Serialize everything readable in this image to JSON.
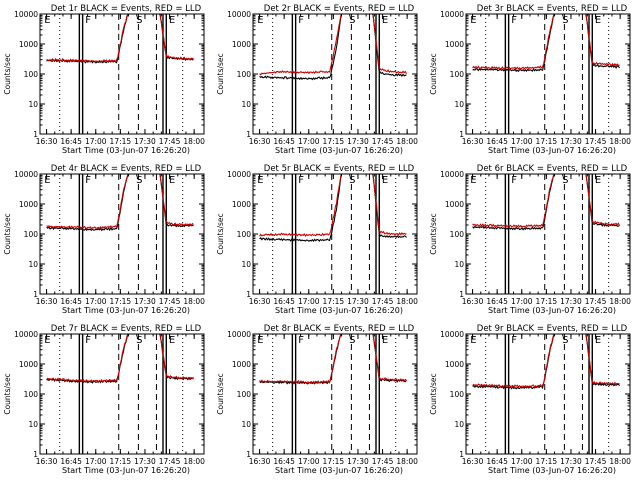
{
  "chart_data": [
    {
      "type": "line",
      "title": "Det 1r BLACK = Events, RED = LLD",
      "xlabel": "Start Time (03-Jun-07 16:26:20)",
      "ylabel": "Counts/sec",
      "x_ticks": [
        "16:30",
        "16:45",
        "17:00",
        "17:15",
        "17:30",
        "17:45",
        "18:00"
      ],
      "y_ticks": [
        "1",
        "10",
        "100",
        "1000",
        "10000"
      ],
      "yscale": "log",
      "ylim": [
        1,
        10000
      ],
      "markers": [
        "E",
        "F",
        "S",
        "E"
      ],
      "series": [
        {
          "name": "Events",
          "color": "#000000",
          "x": [
            "16:30",
            "16:45",
            "17:00",
            "17:13",
            "17:17",
            "17:20",
            "17:39",
            "17:43",
            "17:50",
            "18:00"
          ],
          "y": [
            280,
            270,
            250,
            260,
            3000,
            12000,
            12000,
            350,
            320,
            300
          ]
        },
        {
          "name": "LLD",
          "color": "#cc0000",
          "x": [
            "16:30",
            "16:45",
            "17:00",
            "17:13",
            "17:17",
            "17:20",
            "17:39",
            "17:43",
            "17:50",
            "18:00"
          ],
          "y": [
            300,
            290,
            270,
            280,
            3500,
            12000,
            12000,
            380,
            340,
            320
          ]
        }
      ]
    },
    {
      "type": "line",
      "title": "Det 2r BLACK = Events, RED = LLD",
      "xlabel": "Start Time (03-Jun-07 16:26:20)",
      "ylabel": "Counts/sec",
      "x_ticks": [
        "16:30",
        "16:45",
        "17:00",
        "17:15",
        "17:30",
        "17:45",
        "18:00"
      ],
      "y_ticks": [
        "1",
        "10",
        "100",
        "1000",
        "10000"
      ],
      "yscale": "log",
      "ylim": [
        1,
        10000
      ],
      "markers": [
        "E",
        "F",
        "S",
        "E"
      ],
      "series": [
        {
          "name": "Events",
          "color": "#000000",
          "x": [
            "16:30",
            "16:45",
            "17:00",
            "17:13",
            "17:17",
            "17:20",
            "17:39",
            "17:43",
            "17:50",
            "18:00"
          ],
          "y": [
            80,
            75,
            70,
            75,
            800,
            12000,
            12000,
            110,
            95,
            90
          ]
        },
        {
          "name": "LLD",
          "color": "#cc0000",
          "x": [
            "16:30",
            "16:45",
            "17:00",
            "17:13",
            "17:17",
            "17:20",
            "17:39",
            "17:43",
            "17:50",
            "18:00"
          ],
          "y": [
            100,
            120,
            110,
            120,
            1500,
            12000,
            12000,
            150,
            120,
            110
          ]
        }
      ]
    },
    {
      "type": "line",
      "title": "Det 3r BLACK = Events, RED = LLD",
      "xlabel": "Start Time (03-Jun-07 16:26:20)",
      "ylabel": "Counts/sec",
      "x_ticks": [
        "16:30",
        "16:45",
        "17:00",
        "17:15",
        "17:30",
        "17:45",
        "18:00"
      ],
      "y_ticks": [
        "1",
        "10",
        "100",
        "1000",
        "10000"
      ],
      "yscale": "log",
      "ylim": [
        1,
        10000
      ],
      "markers": [
        "E",
        "F",
        "S",
        "E"
      ],
      "series": [
        {
          "name": "Events",
          "color": "#000000",
          "x": [
            "16:30",
            "16:45",
            "17:00",
            "17:13",
            "17:17",
            "17:20",
            "17:39",
            "17:43",
            "17:50",
            "18:00"
          ],
          "y": [
            140,
            140,
            130,
            140,
            2000,
            12000,
            12000,
            200,
            180,
            170
          ]
        },
        {
          "name": "LLD",
          "color": "#cc0000",
          "x": [
            "16:30",
            "16:45",
            "17:00",
            "17:13",
            "17:17",
            "17:20",
            "17:39",
            "17:43",
            "17:50",
            "18:00"
          ],
          "y": [
            170,
            160,
            155,
            170,
            2500,
            12000,
            12000,
            230,
            210,
            200
          ]
        }
      ]
    },
    {
      "type": "line",
      "title": "Det 4r BLACK = Events, RED = LLD",
      "xlabel": "Start Time (03-Jun-07 16:26:20)",
      "ylabel": "Counts/sec",
      "x_ticks": [
        "16:30",
        "16:45",
        "17:00",
        "17:15",
        "17:30",
        "17:45",
        "18:00"
      ],
      "y_ticks": [
        "1",
        "10",
        "100",
        "1000",
        "10000"
      ],
      "yscale": "log",
      "ylim": [
        1,
        10000
      ],
      "markers": [
        "E",
        "F",
        "S",
        "E"
      ],
      "series": [
        {
          "name": "Events",
          "color": "#000000",
          "x": [
            "16:30",
            "16:45",
            "17:00",
            "17:13",
            "17:17",
            "17:20",
            "17:39",
            "17:43",
            "17:50",
            "18:00"
          ],
          "y": [
            160,
            150,
            140,
            150,
            2500,
            12000,
            12000,
            200,
            190,
            190
          ]
        },
        {
          "name": "LLD",
          "color": "#cc0000",
          "x": [
            "16:30",
            "16:45",
            "17:00",
            "17:13",
            "17:17",
            "17:20",
            "17:39",
            "17:43",
            "17:50",
            "18:00"
          ],
          "y": [
            180,
            170,
            160,
            180,
            3000,
            12000,
            12000,
            230,
            210,
            210
          ]
        }
      ]
    },
    {
      "type": "line",
      "title": "Det 5r BLACK = Events, RED = LLD",
      "xlabel": "Start Time (03-Jun-07 16:26:20)",
      "ylabel": "Counts/sec",
      "x_ticks": [
        "16:30",
        "16:45",
        "17:00",
        "17:15",
        "17:30",
        "17:45",
        "18:00"
      ],
      "y_ticks": [
        "1",
        "10",
        "100",
        "1000",
        "10000"
      ],
      "yscale": "log",
      "ylim": [
        1,
        10000
      ],
      "markers": [
        "E",
        "F",
        "S",
        "E"
      ],
      "series": [
        {
          "name": "Events",
          "color": "#000000",
          "x": [
            "16:30",
            "16:45",
            "17:00",
            "17:13",
            "17:17",
            "17:20",
            "17:39",
            "17:43",
            "17:50",
            "18:00"
          ],
          "y": [
            70,
            65,
            60,
            65,
            700,
            12000,
            12000,
            90,
            80,
            80
          ]
        },
        {
          "name": "LLD",
          "color": "#cc0000",
          "x": [
            "16:30",
            "16:45",
            "17:00",
            "17:13",
            "17:17",
            "17:20",
            "17:39",
            "17:43",
            "17:50",
            "18:00"
          ],
          "y": [
            90,
            100,
            90,
            100,
            1200,
            12000,
            12000,
            120,
            100,
            100
          ]
        }
      ]
    },
    {
      "type": "line",
      "title": "Det 6r BLACK = Events, RED = LLD",
      "xlabel": "Start Time (03-Jun-07 16:26:20)",
      "ylabel": "Counts/sec",
      "x_ticks": [
        "16:30",
        "16:45",
        "17:00",
        "17:15",
        "17:30",
        "17:45",
        "18:00"
      ],
      "y_ticks": [
        "1",
        "10",
        "100",
        "1000",
        "10000"
      ],
      "yscale": "log",
      "ylim": [
        1,
        10000
      ],
      "markers": [
        "E",
        "F",
        "S",
        "E"
      ],
      "series": [
        {
          "name": "Events",
          "color": "#000000",
          "x": [
            "16:30",
            "16:45",
            "17:00",
            "17:13",
            "17:17",
            "17:20",
            "17:39",
            "17:43",
            "17:50",
            "18:00"
          ],
          "y": [
            170,
            160,
            150,
            160,
            2500,
            12000,
            12000,
            220,
            200,
            190
          ]
        },
        {
          "name": "LLD",
          "color": "#cc0000",
          "x": [
            "16:30",
            "16:45",
            "17:00",
            "17:13",
            "17:17",
            "17:20",
            "17:39",
            "17:43",
            "17:50",
            "18:00"
          ],
          "y": [
            200,
            190,
            180,
            190,
            3000,
            12000,
            12000,
            250,
            220,
            210
          ]
        }
      ]
    },
    {
      "type": "line",
      "title": "Det 7r BLACK = Events, RED = LLD",
      "xlabel": "Start Time (03-Jun-07 16:26:20)",
      "ylabel": "Counts/sec",
      "x_ticks": [
        "16:30",
        "16:45",
        "17:00",
        "17:15",
        "17:30",
        "17:45",
        "18:00"
      ],
      "y_ticks": [
        "1",
        "10",
        "100",
        "1000",
        "10000"
      ],
      "yscale": "log",
      "ylim": [
        1,
        10000
      ],
      "markers": [
        "E",
        "F",
        "S",
        "E"
      ],
      "series": [
        {
          "name": "Events",
          "color": "#000000",
          "x": [
            "16:30",
            "16:45",
            "17:00",
            "17:13",
            "17:17",
            "17:20",
            "17:39",
            "17:43",
            "17:50",
            "18:00"
          ],
          "y": [
            300,
            270,
            250,
            270,
            3000,
            12000,
            12000,
            360,
            330,
            320
          ]
        },
        {
          "name": "LLD",
          "color": "#cc0000",
          "x": [
            "16:30",
            "16:45",
            "17:00",
            "17:13",
            "17:17",
            "17:20",
            "17:39",
            "17:43",
            "17:50",
            "18:00"
          ],
          "y": [
            320,
            290,
            270,
            290,
            3500,
            12000,
            12000,
            390,
            350,
            340
          ]
        }
      ]
    },
    {
      "type": "line",
      "title": "Det 8r BLACK = Events, RED = LLD",
      "xlabel": "Start Time (03-Jun-07 16:26:20)",
      "ylabel": "Counts/sec",
      "x_ticks": [
        "16:30",
        "16:45",
        "17:00",
        "17:15",
        "17:30",
        "17:45",
        "18:00"
      ],
      "y_ticks": [
        "1",
        "10",
        "100",
        "1000",
        "10000"
      ],
      "yscale": "log",
      "ylim": [
        1,
        10000
      ],
      "markers": [
        "E",
        "F",
        "S",
        "E"
      ],
      "series": [
        {
          "name": "Events",
          "color": "#000000",
          "x": [
            "16:30",
            "16:45",
            "17:00",
            "17:13",
            "17:17",
            "17:20",
            "17:39",
            "17:43",
            "17:50",
            "18:00"
          ],
          "y": [
            250,
            240,
            230,
            240,
            2800,
            12000,
            12000,
            300,
            280,
            270
          ]
        },
        {
          "name": "LLD",
          "color": "#cc0000",
          "x": [
            "16:30",
            "16:45",
            "17:00",
            "17:13",
            "17:17",
            "17:20",
            "17:39",
            "17:43",
            "17:50",
            "18:00"
          ],
          "y": [
            270,
            260,
            250,
            260,
            3200,
            12000,
            12000,
            330,
            300,
            290
          ]
        }
      ]
    },
    {
      "type": "line",
      "title": "Det 9r BLACK = Events, RED = LLD",
      "xlabel": "Start Time (03-Jun-07 16:26:20)",
      "ylabel": "Counts/sec",
      "x_ticks": [
        "16:30",
        "16:45",
        "17:00",
        "17:15",
        "17:30",
        "17:45",
        "18:00"
      ],
      "y_ticks": [
        "1",
        "10",
        "100",
        "1000",
        "10000"
      ],
      "yscale": "log",
      "ylim": [
        1,
        10000
      ],
      "markers": [
        "E",
        "F",
        "S",
        "E"
      ],
      "series": [
        {
          "name": "Events",
          "color": "#000000",
          "x": [
            "16:30",
            "16:45",
            "17:00",
            "17:13",
            "17:17",
            "17:20",
            "17:39",
            "17:43",
            "17:50",
            "18:00"
          ],
          "y": [
            180,
            170,
            160,
            170,
            2500,
            12000,
            12000,
            220,
            210,
            200
          ]
        },
        {
          "name": "LLD",
          "color": "#cc0000",
          "x": [
            "16:30",
            "16:45",
            "17:00",
            "17:13",
            "17:17",
            "17:20",
            "17:39",
            "17:43",
            "17:50",
            "18:00"
          ],
          "y": [
            200,
            190,
            180,
            190,
            3000,
            12000,
            12000,
            240,
            230,
            220
          ]
        }
      ]
    }
  ]
}
